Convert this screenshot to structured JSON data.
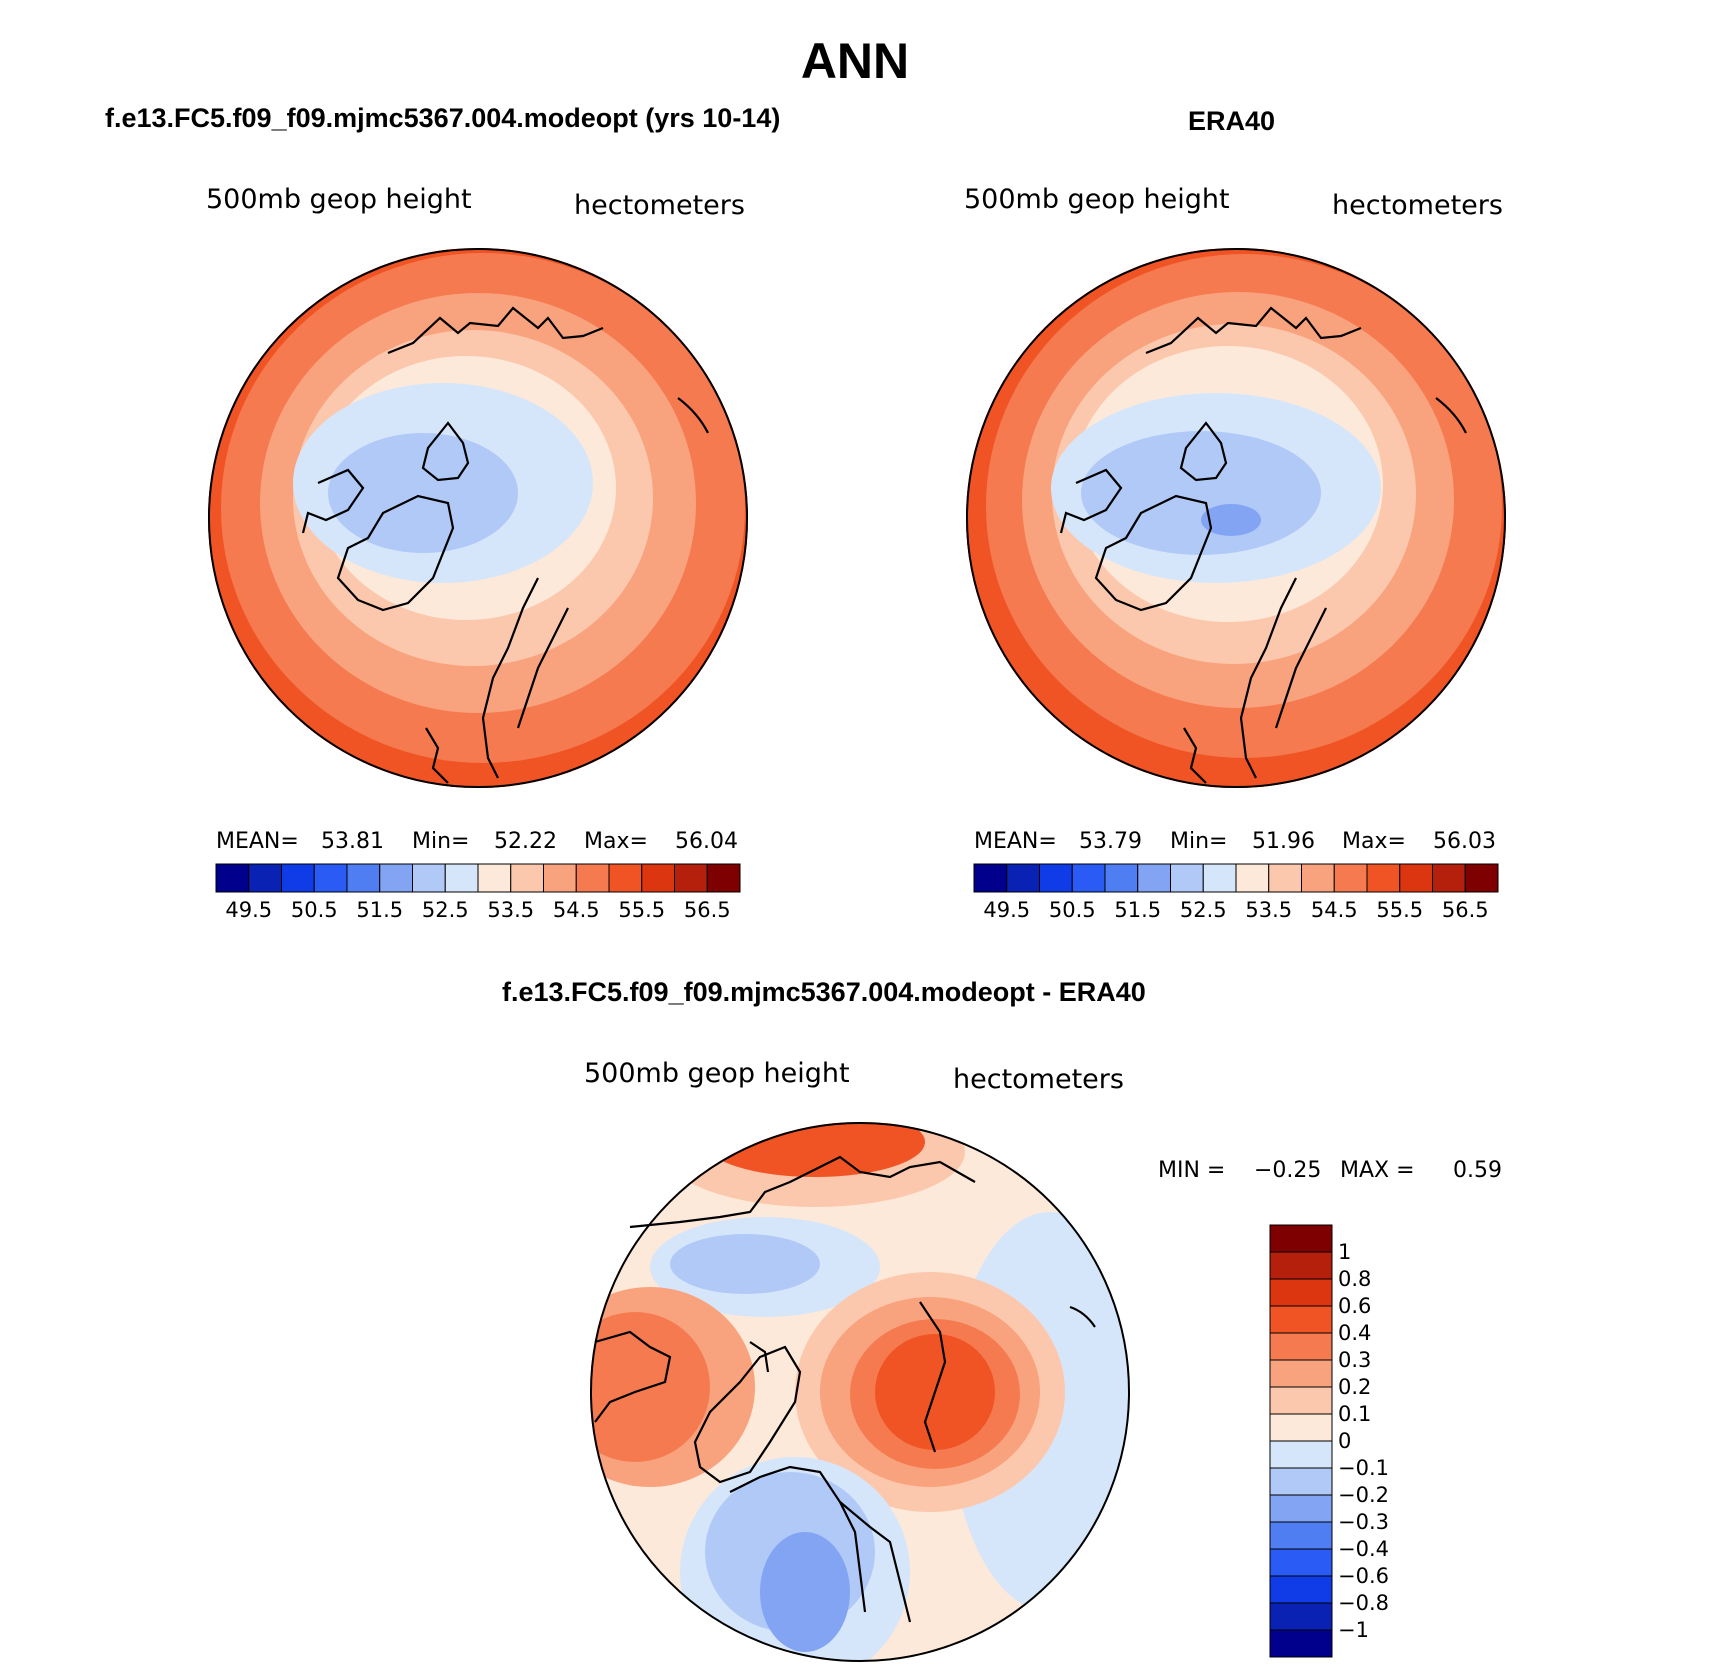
{
  "figure": {
    "title": "ANN"
  },
  "panels": [
    {
      "id": "model",
      "subtitle": "f.e13.FC5.f09_f09.mjmc5367.004.modeopt (yrs 10-14)",
      "left_label": "500mb  geop  height",
      "right_label": "hectometers",
      "stats": {
        "mean_label": "MEAN=",
        "mean": "53.81",
        "min_label": "Min=",
        "min": "52.22",
        "max_label": "Max=",
        "max": "56.04"
      }
    },
    {
      "id": "obs",
      "subtitle": "ERA40",
      "left_label": "500mb  geop  height",
      "right_label": "hectometers",
      "stats": {
        "mean_label": "MEAN=",
        "mean": "53.79",
        "min_label": "Min=",
        "min": "51.96",
        "max_label": "Max=",
        "max": "56.03"
      }
    },
    {
      "id": "diff",
      "subtitle": "f.e13.FC5.f09_f09.mjmc5367.004.modeopt - ERA40",
      "left_label": "500mb  geop  height",
      "right_label": "hectometers",
      "stats": {
        "min_label": "MIN =",
        "min": "−0.25",
        "max_label": "MAX =",
        "max": "0.59"
      }
    }
  ],
  "colorbars": {
    "absolute": {
      "colors": [
        "#00008c",
        "#0a22b4",
        "#0f3ce6",
        "#2a5cf5",
        "#4f7ef2",
        "#82a4f3",
        "#b1c9f7",
        "#d6e6fa",
        "#fde9d9",
        "#fcc8ad",
        "#f9a27e",
        "#f57a50",
        "#f05424",
        "#db3610",
        "#b4200c",
        "#7f0000"
      ],
      "tick_labels": [
        "49.5",
        "50.5",
        "51.5",
        "52.5",
        "53.5",
        "54.5",
        "55.5",
        "56.5"
      ],
      "tick_values": [
        49.5,
        50.5,
        51.5,
        52.5,
        53.5,
        54.5,
        55.5,
        56.5
      ]
    },
    "difference": {
      "colors": [
        "#00008c",
        "#0a22b4",
        "#0f3ce6",
        "#2a5cf5",
        "#4f7ef2",
        "#82a4f3",
        "#b1c9f7",
        "#d6e6fa",
        "#fde9d9",
        "#fcc8ad",
        "#f9a27e",
        "#f57a50",
        "#f05424",
        "#db3610",
        "#b4200c",
        "#7f0000"
      ],
      "tick_labels": [
        "1",
        "0.8",
        "0.6",
        "0.4",
        "0.3",
        "0.2",
        "0.1",
        "0",
        "−0.1",
        "−0.2",
        "−0.3",
        "−0.4",
        "−0.6",
        "−0.8",
        "−1"
      ]
    }
  },
  "chart_data": [
    {
      "type": "heatmap",
      "projection": "north polar stereographic",
      "title": "f.e13.FC5.f09_f09.mjmc5367.004.modeopt (yrs 10-14)",
      "variable": "500mb geop height",
      "units": "hectometers",
      "mean": 53.81,
      "min": 52.22,
      "max": 56.04,
      "contour_levels": [
        49.5,
        50.0,
        50.5,
        51.0,
        51.5,
        52.0,
        52.5,
        53.0,
        53.5,
        54.0,
        54.5,
        55.0,
        55.5,
        56.0,
        56.5
      ]
    },
    {
      "type": "heatmap",
      "projection": "north polar stereographic",
      "title": "ERA40",
      "variable": "500mb geop height",
      "units": "hectometers",
      "mean": 53.79,
      "min": 51.96,
      "max": 56.03,
      "contour_levels": [
        49.5,
        50.0,
        50.5,
        51.0,
        51.5,
        52.0,
        52.5,
        53.0,
        53.5,
        54.0,
        54.5,
        55.0,
        55.5,
        56.0,
        56.5
      ]
    },
    {
      "type": "heatmap",
      "projection": "north polar stereographic",
      "title": "f.e13.FC5.f09_f09.mjmc5367.004.modeopt - ERA40",
      "variable": "500mb geop height",
      "units": "hectometers",
      "min": -0.25,
      "max": 0.59,
      "contour_levels": [
        -1,
        -0.8,
        -0.6,
        -0.4,
        -0.3,
        -0.2,
        -0.1,
        0,
        0.1,
        0.2,
        0.3,
        0.4,
        0.6,
        0.8,
        1
      ]
    }
  ]
}
